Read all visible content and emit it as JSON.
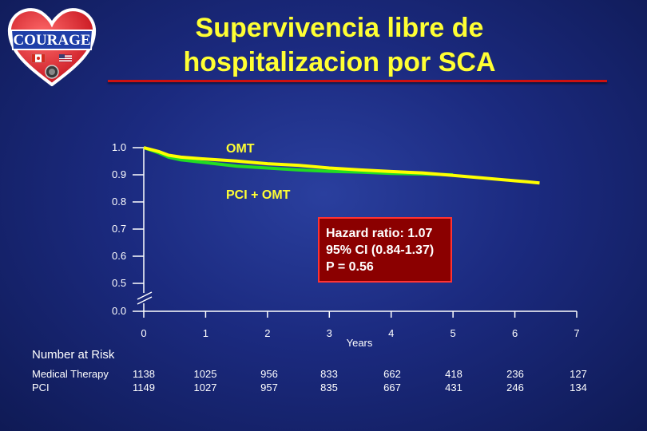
{
  "logo": {
    "text": "COURAGE"
  },
  "title": {
    "line1": "Supervivencia libre de",
    "line2": "hospitalizacion por SCA"
  },
  "hazard_box": {
    "line1": "Hazard ratio: 1.07",
    "line2": "95% CI (0.84-1.37)",
    "line3": "P = 0.56"
  },
  "colors": {
    "omt": "#ffff00",
    "pci": "#22dd22",
    "title": "#ffff33",
    "rule": "#cc1111"
  },
  "chart_data": {
    "type": "line",
    "xlabel": "Years",
    "ylabel": "",
    "x_ticks": [
      "0",
      "1",
      "2",
      "3",
      "4",
      "5",
      "6",
      "7"
    ],
    "y_ticks": [
      "1.0",
      "0.9",
      "0.8",
      "0.7",
      "0.6",
      "0.5",
      "0.0"
    ],
    "xlim": [
      0,
      7
    ],
    "y_axis_break": true,
    "series": [
      {
        "name": "OMT",
        "color": "#ffff00",
        "x": [
          0,
          0.25,
          0.4,
          0.6,
          1.0,
          1.5,
          2.0,
          2.5,
          3.0,
          3.5,
          4.0,
          4.5,
          5.0,
          5.5,
          6.0,
          6.2,
          6.4
        ],
        "y": [
          1.0,
          0.985,
          0.972,
          0.965,
          0.958,
          0.951,
          0.941,
          0.935,
          0.925,
          0.918,
          0.912,
          0.907,
          0.898,
          0.888,
          0.878,
          0.874,
          0.87
        ]
      },
      {
        "name": "PCI + OMT",
        "color": "#22dd22",
        "x": [
          0,
          0.25,
          0.4,
          0.6,
          1.0,
          1.5,
          2.0,
          2.5,
          3.0,
          3.5,
          4.0,
          4.5,
          5.0
        ],
        "y": [
          1.0,
          0.98,
          0.965,
          0.955,
          0.945,
          0.932,
          0.925,
          0.918,
          0.913,
          0.91,
          0.905,
          0.903,
          0.9
        ]
      }
    ]
  },
  "risk_table": {
    "title": "Number at Risk",
    "rows": [
      {
        "label": "Medical Therapy",
        "values": [
          "1138",
          "1025",
          "956",
          "833",
          "662",
          "418",
          "236",
          "127"
        ]
      },
      {
        "label": "PCI",
        "values": [
          "1149",
          "1027",
          "957",
          "835",
          "667",
          "431",
          "246",
          "134"
        ]
      }
    ]
  }
}
